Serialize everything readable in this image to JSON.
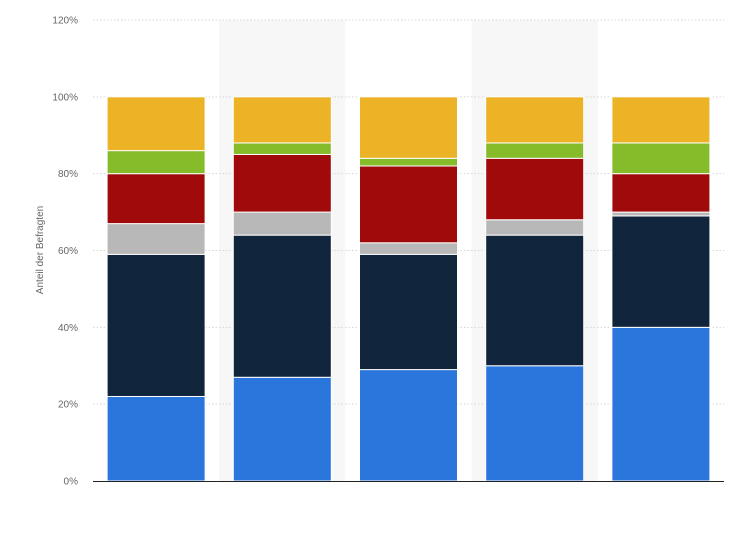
{
  "chart_data": {
    "type": "bar",
    "stacked": true,
    "title": "",
    "xlabel": "",
    "ylabel": "Anteil der Befragten",
    "ylim": [
      0,
      120
    ],
    "yticks": [
      0,
      20,
      40,
      60,
      80,
      100,
      120
    ],
    "ytick_labels": [
      "0%",
      "20%",
      "40%",
      "60%",
      "80%",
      "100%",
      "120%"
    ],
    "grid": true,
    "legend": "none",
    "categories": [
      "",
      "",
      "",
      "",
      ""
    ],
    "series": [
      {
        "color": "#2a76dd",
        "values": [
          22,
          27,
          29,
          30,
          40
        ]
      },
      {
        "color": "#10253c",
        "values": [
          37,
          37,
          30,
          34,
          29
        ]
      },
      {
        "color": "#b8b8b8",
        "values": [
          8,
          6,
          3,
          4,
          1
        ]
      },
      {
        "color": "#a10a0a",
        "values": [
          13,
          15,
          20,
          16,
          10
        ]
      },
      {
        "color": "#86bb2a",
        "values": [
          6,
          3,
          2,
          4,
          8
        ]
      },
      {
        "color": "#ebb325",
        "values": [
          14,
          12,
          16,
          12,
          12
        ]
      }
    ]
  }
}
